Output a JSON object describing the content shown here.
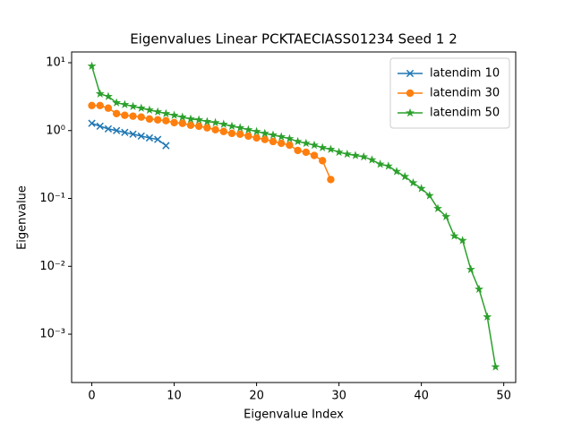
{
  "chart_data": {
    "type": "line",
    "title": "Eigenvalues Linear PCKTAECIASS01234 Seed 1 2",
    "x_label": "Eigenvalue Index",
    "y_label": "Eigenvalue",
    "y_scale": "log",
    "legend": "upper right",
    "xlim": [
      -2.45,
      51.45
    ],
    "xticks": [
      0,
      10,
      20,
      30,
      40,
      50
    ],
    "ylim": [
      0.000194,
      14.4
    ],
    "yticks": [
      {
        "value": 10,
        "label": "10¹"
      },
      {
        "value": 1,
        "label": "10⁰"
      },
      {
        "value": 0.1,
        "label": "10⁻¹"
      },
      {
        "value": 0.01,
        "label": "10⁻²"
      },
      {
        "value": 0.001,
        "label": "10⁻³"
      }
    ],
    "series": [
      {
        "name": "latendim 10",
        "color": "#1f77b4",
        "marker": "x",
        "x": [
          0,
          1,
          2,
          3,
          4,
          5,
          6,
          7,
          8,
          9
        ],
        "values": [
          1.28,
          1.16,
          1.06,
          1.0,
          0.94,
          0.885,
          0.83,
          0.78,
          0.74,
          0.6
        ]
      },
      {
        "name": "latendim 30",
        "color": "#ff7f0e",
        "marker": "o",
        "x": [
          0,
          1,
          2,
          3,
          4,
          5,
          6,
          7,
          8,
          9,
          10,
          11,
          12,
          13,
          14,
          15,
          16,
          17,
          18,
          19,
          20,
          21,
          22,
          23,
          24,
          25,
          26,
          27,
          28,
          29
        ],
        "values": [
          2.34,
          2.34,
          2.14,
          1.78,
          1.68,
          1.63,
          1.58,
          1.48,
          1.44,
          1.4,
          1.31,
          1.28,
          1.2,
          1.16,
          1.1,
          1.03,
          0.97,
          0.91,
          0.885,
          0.83,
          0.78,
          0.74,
          0.69,
          0.65,
          0.61,
          0.51,
          0.48,
          0.43,
          0.36,
          0.19
        ]
      },
      {
        "name": "latendim 50",
        "color": "#2ca02c",
        "marker": "*",
        "x": [
          0,
          1,
          2,
          3,
          4,
          5,
          6,
          7,
          8,
          9,
          10,
          11,
          12,
          13,
          14,
          15,
          16,
          17,
          18,
          19,
          20,
          21,
          22,
          23,
          24,
          25,
          26,
          27,
          28,
          29,
          30,
          31,
          32,
          33,
          34,
          35,
          36,
          37,
          38,
          39,
          40,
          41,
          42,
          43,
          44,
          45,
          46,
          47,
          48,
          49
        ],
        "values": [
          8.9,
          3.48,
          3.18,
          2.57,
          2.42,
          2.27,
          2.14,
          2.01,
          1.89,
          1.78,
          1.68,
          1.58,
          1.48,
          1.44,
          1.36,
          1.31,
          1.24,
          1.16,
          1.1,
          1.03,
          0.97,
          0.91,
          0.86,
          0.81,
          0.76,
          0.69,
          0.65,
          0.61,
          0.56,
          0.53,
          0.48,
          0.45,
          0.43,
          0.41,
          0.37,
          0.32,
          0.3,
          0.25,
          0.21,
          0.17,
          0.14,
          0.11,
          0.071,
          0.054,
          0.028,
          0.024,
          0.009,
          0.0046,
          0.0018,
          0.00033
        ]
      }
    ]
  }
}
